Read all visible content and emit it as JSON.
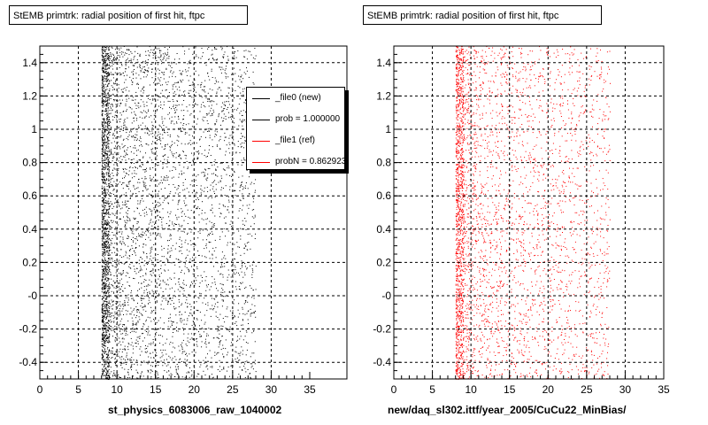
{
  "colors": {
    "new": "#000000",
    "ref": "#ff0000",
    "grid": "#000000"
  },
  "legend": {
    "entries": [
      {
        "label": "_file0 (new)",
        "color": "#000000"
      },
      {
        "label": "prob = 1.000000",
        "color": "#000000"
      },
      {
        "label": "_file1 (ref)",
        "color": "#ff0000"
      },
      {
        "label": "probN = 0.862923",
        "color": "#ff0000"
      }
    ]
  },
  "chart_data": [
    {
      "type": "scatter",
      "title": "StEMB primtrk: radial position of first hit, ftpc",
      "xlabel": "st_physics_6083006_raw_1040002",
      "ylabel": "",
      "xlim": [
        0,
        35
      ],
      "ylim": [
        -0.5,
        1.5
      ],
      "x_ticks": [
        0,
        5,
        10,
        15,
        20,
        25,
        30,
        35
      ],
      "y_ticks": [
        -0.4,
        -0.2,
        0,
        0.2,
        0.4,
        0.6,
        0.8,
        1,
        1.2,
        1.4
      ],
      "y_tick_labels": [
        "-0.4",
        "-0.2",
        "-0",
        "0.2",
        "0.4",
        "0.6",
        "0.8",
        "1",
        "1.2",
        "1.4"
      ],
      "grid": true,
      "series": [
        {
          "color": "#000000",
          "x_min": 8,
          "x_max": 28,
          "dense_band": [
            8,
            9
          ],
          "n": 5200
        }
      ]
    },
    {
      "type": "scatter",
      "title": "StEMB primtrk: radial position of first hit, ftpc",
      "xlabel": "new/daq_sl302.ittf/year_2005/CuCu22_MinBias/",
      "ylabel": "",
      "xlim": [
        0,
        35
      ],
      "ylim": [
        -0.5,
        1.5
      ],
      "x_ticks": [
        0,
        5,
        10,
        15,
        20,
        25,
        30,
        35
      ],
      "y_ticks": [
        -0.4,
        -0.2,
        0,
        0.2,
        0.4,
        0.6,
        0.8,
        1,
        1.2,
        1.4
      ],
      "y_tick_labels": [
        "-0.4",
        "-0.2",
        "-0",
        "0.2",
        "0.4",
        "0.6",
        "0.8",
        "1",
        "1.2",
        "1.4"
      ],
      "grid": true,
      "series": [
        {
          "color": "#ff0000",
          "x_min": 8,
          "x_max": 28,
          "dense_band": [
            8,
            9
          ],
          "n": 3800
        }
      ]
    }
  ]
}
